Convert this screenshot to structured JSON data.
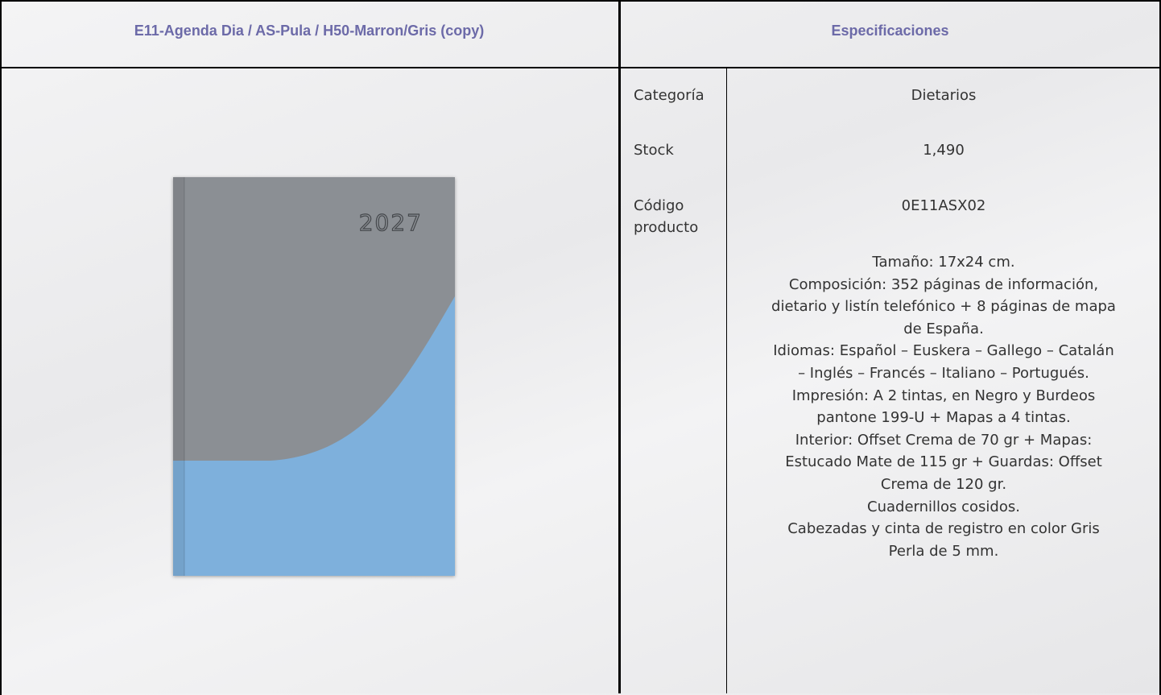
{
  "header": {
    "title": "E11-Agenda Dia / AS-Pula / H50-Marron/Gris (copy)",
    "spec_title": "Especificaciones"
  },
  "image": {
    "cover_text": "2027"
  },
  "specs": [
    {
      "label": "Categoría",
      "value": "Dietarios"
    },
    {
      "label": "Stock",
      "value": "1,490"
    },
    {
      "label": "Código producto",
      "value": "0E11ASX02"
    }
  ],
  "description": [
    "Tamaño: 17x24 cm.",
    "Composición: 352 páginas de información,",
    "dietario y listín telefónico + 8 páginas de mapa",
    "de España.",
    "Idiomas: Español – Euskera – Gallego – Catalán",
    "– Inglés – Francés – Italiano – Portugués.",
    "Impresión: A 2 tintas, en Negro y Burdeos",
    "pantone 199-U + Mapas a 4 tintas.",
    "Interior: Offset Crema de 70 gr + Mapas:",
    "Estucado Mate de 115 gr + Guardas: Offset",
    "Crema de 120 gr.",
    "Cuadernillos cosidos.",
    "Cabezadas y cinta de registro en color Gris",
    "Perla de 5 mm."
  ]
}
